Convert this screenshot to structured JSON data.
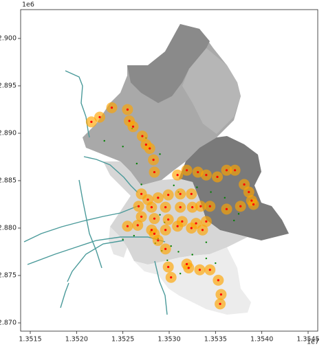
{
  "chart_data": {
    "type": "scatter",
    "x_offset_label": "1e7",
    "y_offset_label": "1e6",
    "xlim": [
      1.351396,
      1.354604
    ],
    "ylim": [
      2.86913,
      2.90304
    ],
    "xticks": [
      1.3515,
      {
        "value": 1.352,
        "label": "1.3520"
      },
      1.3525,
      {
        "value": 1.353,
        "label": "1.3530"
      },
      1.3535,
      {
        "value": 1.354,
        "label": "1.3540"
      },
      1.3545
    ],
    "yticks": [
      {
        "value": 2.87,
        "label": "2.870"
      },
      2.875,
      {
        "value": 2.88,
        "label": "2.880"
      },
      2.885,
      {
        "value": 2.89,
        "label": "2.890"
      },
      2.895,
      {
        "value": 2.9,
        "label": "2.900"
      }
    ],
    "center_color": "red",
    "series": [
      {
        "color": "orange",
        "x": [
          1.35216,
          1.35225,
          1.35238,
          1.35255,
          1.35257,
          1.35261,
          1.35271,
          1.35275,
          1.35279,
          1.35283,
          1.35284,
          1.35309,
          1.35319,
          1.35331,
          1.3534,
          1.35352,
          1.35362,
          1.35371,
          1.35381,
          1.35386,
          1.35389,
          1.35391,
          1.35377,
          1.35362,
          1.3527,
          1.35277,
          1.35288,
          1.35299,
          1.35312,
          1.35324,
          1.35334,
          1.35344,
          1.35267,
          1.35281,
          1.35296,
          1.35312,
          1.35325,
          1.3527,
          1.35284,
          1.35299,
          1.35314,
          1.35329,
          1.3534,
          1.35255,
          1.35266,
          1.35281,
          1.35296,
          1.35309,
          1.35324,
          1.35336,
          1.35288,
          1.35296,
          1.35299,
          1.35302,
          1.35319,
          1.35321,
          1.35333,
          1.35344,
          1.35353,
          1.35356,
          1.35355,
          1.35284
        ],
        "values": [
          2.8912,
          2.8917,
          2.8927,
          2.8925,
          2.8913,
          2.8907,
          2.8897,
          2.8888,
          2.8884,
          2.8872,
          2.8859,
          2.8856,
          2.8861,
          2.8859,
          2.8856,
          2.8854,
          2.8861,
          2.8861,
          2.8846,
          2.8838,
          2.8829,
          2.8825,
          2.8823,
          2.882,
          2.8836,
          2.883,
          2.8832,
          2.8835,
          2.8836,
          2.8836,
          2.8823,
          2.8823,
          2.8823,
          2.8822,
          2.8822,
          2.8822,
          2.8822,
          2.8812,
          2.881,
          2.8809,
          2.8807,
          2.8805,
          2.8807,
          2.8802,
          2.8803,
          2.8798,
          2.8798,
          2.8802,
          2.88,
          2.8798,
          2.8787,
          2.8778,
          2.8759,
          2.8748,
          2.8762,
          2.8758,
          2.8756,
          2.8756,
          2.8745,
          2.873,
          2.872,
          2.8794
        ]
      },
      {
        "color": "green",
        "x": [
          1.3526,
          1.35275,
          1.3523,
          1.3525,
          1.3529,
          1.35265,
          1.35305,
          1.3531,
          1.3527,
          1.3533,
          1.35345,
          1.3536,
          1.35375,
          1.3537,
          1.3529,
          1.35295,
          1.3528,
          1.35262,
          1.3525,
          1.35285,
          1.35302,
          1.3531,
          1.35325,
          1.3534,
          1.3535,
          1.35312,
          1.35298,
          1.35292,
          1.3534,
          1.35288
        ],
        "values": [
          2.8905,
          2.8895,
          2.8892,
          2.8886,
          2.8878,
          2.8868,
          2.8845,
          2.8838,
          2.8846,
          2.8843,
          2.8838,
          2.8832,
          2.8815,
          2.8808,
          2.8814,
          2.8806,
          2.8796,
          2.8792,
          2.8788,
          2.8784,
          2.8781,
          2.8775,
          2.8772,
          2.8768,
          2.8763,
          2.8752,
          2.8766,
          2.8776,
          2.8785,
          2.8789
        ]
      }
    ]
  }
}
